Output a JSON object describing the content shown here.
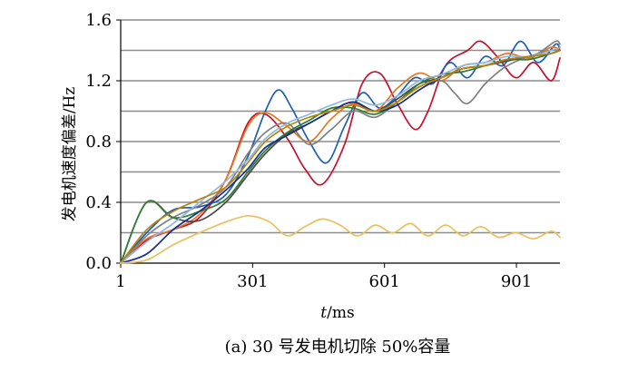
{
  "chart_data": {
    "type": "line",
    "ylabel": "发电机速度偏差/Hz",
    "xlabel_italic": "t",
    "xlabel_rest": "/ms",
    "caption": "(a) 30 号发电机切除 50%容量",
    "xlim": [
      1,
      1000
    ],
    "ylim": [
      0,
      1.6
    ],
    "x_ticks": [
      1,
      301,
      601,
      901
    ],
    "x_tick_labels": [
      "1",
      "301",
      "601",
      "901"
    ],
    "y_ticks": [
      0,
      0.4,
      0.8,
      1.2,
      1.6
    ],
    "y_tick_labels": [
      "0.0",
      "0.4",
      "0.8",
      "1.2",
      "1.6"
    ],
    "y_gridlines": [
      0.2,
      0.4,
      0.6,
      0.8,
      1.0,
      1.2,
      1.4,
      1.6
    ],
    "grid": "horizontal",
    "legend": "none",
    "series": [
      {
        "color": "#C8102E",
        "x": [
          1,
          60,
          120,
          180,
          240,
          290,
          330,
          380,
          420,
          460,
          510,
          550,
          590,
          630,
          670,
          700,
          740,
          790,
          820,
          860,
          900,
          940,
          980,
          1000
        ],
        "y": [
          0,
          0.15,
          0.22,
          0.3,
          0.55,
          0.92,
          0.98,
          0.82,
          0.62,
          0.52,
          0.78,
          1.18,
          1.25,
          1.05,
          0.88,
          1.0,
          1.3,
          1.4,
          1.46,
          1.35,
          1.22,
          1.32,
          1.2,
          1.35
        ]
      },
      {
        "color": "#1F5FB4",
        "x": [
          1,
          60,
          120,
          180,
          240,
          290,
          330,
          360,
          390,
          430,
          470,
          510,
          550,
          590,
          630,
          670,
          710,
          750,
          790,
          830,
          870,
          910,
          950,
          990,
          1000
        ],
        "y": [
          0,
          0.2,
          0.35,
          0.37,
          0.45,
          0.7,
          1.0,
          1.14,
          1.02,
          0.8,
          0.66,
          0.9,
          1.12,
          1.02,
          1.1,
          1.22,
          1.18,
          1.32,
          1.22,
          1.36,
          1.3,
          1.46,
          1.32,
          1.44,
          1.4
        ]
      },
      {
        "color": "#E87722",
        "x": [
          1,
          60,
          120,
          180,
          240,
          290,
          330,
          380,
          430,
          480,
          530,
          580,
          630,
          680,
          730,
          780,
          830,
          880,
          930,
          980,
          1000
        ],
        "y": [
          0,
          0.16,
          0.22,
          0.32,
          0.55,
          0.9,
          0.99,
          0.9,
          0.8,
          0.95,
          1.05,
          1.0,
          1.15,
          1.25,
          1.2,
          1.3,
          1.32,
          1.38,
          1.35,
          1.42,
          1.4
        ]
      },
      {
        "color": "#4A4A4A",
        "x": [
          1,
          60,
          120,
          180,
          240,
          290,
          330,
          380,
          430,
          480,
          530,
          580,
          630,
          680,
          730,
          780,
          830,
          880,
          930,
          980,
          1000
        ],
        "y": [
          0,
          0.4,
          0.3,
          0.28,
          0.4,
          0.58,
          0.72,
          0.85,
          0.92,
          1.0,
          1.06,
          1.0,
          1.08,
          1.18,
          1.22,
          1.28,
          1.3,
          1.33,
          1.36,
          1.4,
          1.42
        ]
      },
      {
        "color": "#808080",
        "x": [
          1,
          60,
          120,
          180,
          240,
          290,
          330,
          380,
          430,
          480,
          530,
          580,
          630,
          680,
          730,
          760,
          790,
          830,
          870,
          910,
          950,
          990,
          1000
        ],
        "y": [
          0,
          0.18,
          0.3,
          0.38,
          0.5,
          0.72,
          0.86,
          0.92,
          0.78,
          0.88,
          1.0,
          0.96,
          1.06,
          1.16,
          1.2,
          1.12,
          1.05,
          1.18,
          1.28,
          1.34,
          1.38,
          1.46,
          1.44
        ]
      },
      {
        "color": "#2E7D32",
        "x": [
          1,
          60,
          120,
          180,
          240,
          290,
          330,
          380,
          430,
          480,
          530,
          580,
          630,
          680,
          730,
          780,
          830,
          880,
          930,
          980,
          1000
        ],
        "y": [
          0,
          0.4,
          0.3,
          0.34,
          0.42,
          0.6,
          0.74,
          0.86,
          0.94,
          1.02,
          1.02,
          0.98,
          1.06,
          1.18,
          1.24,
          1.26,
          1.3,
          1.34,
          1.34,
          1.38,
          1.4
        ]
      },
      {
        "color": "#1A2E8C",
        "x": [
          1,
          60,
          120,
          180,
          240,
          290,
          330,
          380,
          430,
          480,
          530,
          580,
          630,
          680,
          730,
          780,
          830,
          880,
          930,
          980,
          1000
        ],
        "y": [
          0,
          0.06,
          0.22,
          0.34,
          0.48,
          0.62,
          0.76,
          0.84,
          0.92,
          1.0,
          1.06,
          1.0,
          1.04,
          1.14,
          1.22,
          1.28,
          1.3,
          1.34,
          1.36,
          1.38,
          1.4
        ]
      },
      {
        "color": "#8FB8E0",
        "x": [
          1,
          60,
          120,
          180,
          240,
          290,
          330,
          380,
          430,
          480,
          530,
          580,
          630,
          680,
          730,
          780,
          830,
          880,
          930,
          980,
          1000
        ],
        "y": [
          0,
          0.14,
          0.26,
          0.4,
          0.54,
          0.68,
          0.82,
          0.92,
          0.98,
          1.04,
          1.08,
          1.04,
          1.1,
          1.2,
          1.24,
          1.3,
          1.32,
          1.36,
          1.36,
          1.4,
          1.42
        ]
      },
      {
        "color": "#B8860B",
        "x": [
          1,
          60,
          120,
          180,
          240,
          290,
          330,
          380,
          430,
          480,
          530,
          580,
          630,
          680,
          730,
          780,
          830,
          880,
          930,
          980,
          1000
        ],
        "y": [
          0,
          0.22,
          0.34,
          0.42,
          0.5,
          0.66,
          0.8,
          0.9,
          0.96,
          1.0,
          1.04,
          1.0,
          1.06,
          1.16,
          1.22,
          1.28,
          1.3,
          1.34,
          1.36,
          1.38,
          1.4
        ]
      },
      {
        "color": "#E8C060",
        "x": [
          1,
          60,
          120,
          180,
          230,
          270,
          300,
          340,
          380,
          420,
          460,
          500,
          540,
          580,
          620,
          660,
          700,
          740,
          780,
          820,
          860,
          900,
          940,
          980,
          1000
        ],
        "y": [
          0,
          0.02,
          0.12,
          0.2,
          0.26,
          0.3,
          0.31,
          0.27,
          0.18,
          0.24,
          0.29,
          0.25,
          0.18,
          0.25,
          0.2,
          0.26,
          0.18,
          0.25,
          0.18,
          0.24,
          0.17,
          0.2,
          0.16,
          0.21,
          0.17
        ]
      }
    ]
  }
}
